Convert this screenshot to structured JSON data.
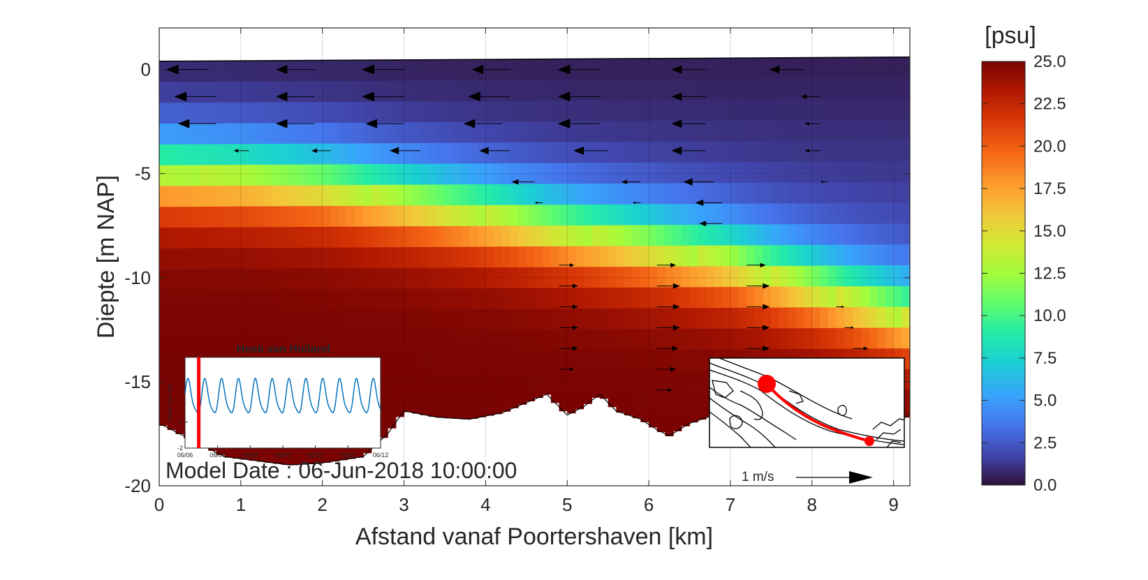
{
  "chart_data": {
    "type": "heatmap",
    "title": "",
    "xlabel": "Afstand vanaf Poortershaven [km]",
    "ylabel": "Diepte [m NAP]",
    "xlim": [
      0,
      9.2
    ],
    "ylim": [
      -20,
      2
    ],
    "x_ticks": [
      "0",
      "1",
      "2",
      "3",
      "4",
      "5",
      "6",
      "7",
      "8",
      "9"
    ],
    "y_ticks": [
      "0",
      "-5",
      "-10",
      "-15",
      "-20"
    ],
    "grid": true,
    "colorbar": {
      "label": "[psu]",
      "range": [
        0,
        25
      ],
      "ticks": [
        "0.0",
        "2.5",
        "5.0",
        "7.5",
        "10.0",
        "12.5",
        "15.0",
        "17.5",
        "20.0",
        "22.5",
        "25.0"
      ],
      "colormap": "turbo"
    },
    "water_surface": [
      {
        "x": 0,
        "y": 0.4
      },
      {
        "x": 9.2,
        "y": 0.6
      }
    ],
    "halocline_depth": [
      {
        "x": 0,
        "y": -5.0
      },
      {
        "x": 1,
        "y": -5.2
      },
      {
        "x": 2,
        "y": -5.6
      },
      {
        "x": 3,
        "y": -6.3
      },
      {
        "x": 4,
        "y": -7.0
      },
      {
        "x": 5,
        "y": -7.8
      },
      {
        "x": 6,
        "y": -8.5
      },
      {
        "x": 7,
        "y": -9.3
      },
      {
        "x": 8,
        "y": -10.5
      },
      {
        "x": 9.2,
        "y": -12.0
      }
    ],
    "bed_depth": [
      {
        "x": 0,
        "y": -17.0
      },
      {
        "x": 0.3,
        "y": -17.6
      },
      {
        "x": 0.8,
        "y": -18.6
      },
      {
        "x": 1.2,
        "y": -18.8
      },
      {
        "x": 1.6,
        "y": -19.0
      },
      {
        "x": 2.0,
        "y": -18.9
      },
      {
        "x": 2.5,
        "y": -18.6
      },
      {
        "x": 2.8,
        "y": -17.5
      },
      {
        "x": 3.0,
        "y": -16.4
      },
      {
        "x": 3.4,
        "y": -16.7
      },
      {
        "x": 3.8,
        "y": -16.8
      },
      {
        "x": 4.2,
        "y": -16.5
      },
      {
        "x": 4.5,
        "y": -16.0
      },
      {
        "x": 4.75,
        "y": -15.6
      },
      {
        "x": 5.0,
        "y": -16.6
      },
      {
        "x": 5.2,
        "y": -16.2
      },
      {
        "x": 5.4,
        "y": -15.6
      },
      {
        "x": 5.6,
        "y": -16.4
      },
      {
        "x": 5.9,
        "y": -16.8
      },
      {
        "x": 6.1,
        "y": -17.3
      },
      {
        "x": 6.25,
        "y": -17.6
      },
      {
        "x": 6.5,
        "y": -17.0
      },
      {
        "x": 6.8,
        "y": -16.6
      },
      {
        "x": 7.1,
        "y": -16.4
      },
      {
        "x": 7.5,
        "y": -16.8
      },
      {
        "x": 8.0,
        "y": -17.0
      },
      {
        "x": 8.5,
        "y": -17.2
      },
      {
        "x": 9.0,
        "y": -17.0
      },
      {
        "x": 9.2,
        "y": -16.6
      }
    ],
    "velocity_arrows": [
      {
        "x": 0.6,
        "y": 0,
        "u": -0.55
      },
      {
        "x": 1.9,
        "y": 0,
        "u": -0.5
      },
      {
        "x": 3.0,
        "y": 0,
        "u": -0.55
      },
      {
        "x": 4.3,
        "y": 0,
        "u": -0.5
      },
      {
        "x": 5.4,
        "y": 0,
        "u": -0.55
      },
      {
        "x": 6.7,
        "y": 0,
        "u": -0.45
      },
      {
        "x": 7.9,
        "y": 0,
        "u": -0.45
      },
      {
        "x": 0.7,
        "y": -1.3,
        "u": -0.55
      },
      {
        "x": 1.9,
        "y": -1.3,
        "u": -0.5
      },
      {
        "x": 3.0,
        "y": -1.3,
        "u": -0.55
      },
      {
        "x": 4.3,
        "y": -1.3,
        "u": -0.55
      },
      {
        "x": 5.4,
        "y": -1.3,
        "u": -0.55
      },
      {
        "x": 6.7,
        "y": -1.3,
        "u": -0.45
      },
      {
        "x": 8.1,
        "y": -1.3,
        "u": -0.25
      },
      {
        "x": 0.7,
        "y": -2.6,
        "u": -0.5
      },
      {
        "x": 1.9,
        "y": -2.6,
        "u": -0.5
      },
      {
        "x": 3.0,
        "y": -2.6,
        "u": -0.5
      },
      {
        "x": 4.2,
        "y": -2.6,
        "u": -0.5
      },
      {
        "x": 5.4,
        "y": -2.6,
        "u": -0.55
      },
      {
        "x": 6.7,
        "y": -2.6,
        "u": -0.45
      },
      {
        "x": 8.1,
        "y": -2.6,
        "u": -0.2
      },
      {
        "x": 1.1,
        "y": -3.9,
        "u": -0.2
      },
      {
        "x": 2.1,
        "y": -3.9,
        "u": -0.25
      },
      {
        "x": 3.2,
        "y": -3.9,
        "u": -0.4
      },
      {
        "x": 4.3,
        "y": -3.9,
        "u": -0.4
      },
      {
        "x": 5.5,
        "y": -3.9,
        "u": -0.45
      },
      {
        "x": 6.7,
        "y": -3.9,
        "u": -0.45
      },
      {
        "x": 8.1,
        "y": -3.9,
        "u": -0.2
      },
      {
        "x": 4.6,
        "y": -5.4,
        "u": -0.3
      },
      {
        "x": 5.9,
        "y": -5.4,
        "u": -0.25
      },
      {
        "x": 6.8,
        "y": -5.4,
        "u": -0.4
      },
      {
        "x": 8.2,
        "y": -5.4,
        "u": -0.1
      },
      {
        "x": 4.7,
        "y": -6.4,
        "u": -0.1
      },
      {
        "x": 5.9,
        "y": -6.4,
        "u": -0.1
      },
      {
        "x": 6.9,
        "y": -6.4,
        "u": -0.35
      },
      {
        "x": 6.9,
        "y": -7.4,
        "u": -0.3
      },
      {
        "x": 4.9,
        "y": -9.4,
        "u": 0.2
      },
      {
        "x": 6.1,
        "y": -9.4,
        "u": 0.25
      },
      {
        "x": 7.2,
        "y": -9.4,
        "u": 0.25
      },
      {
        "x": 4.9,
        "y": -10.4,
        "u": 0.25
      },
      {
        "x": 6.1,
        "y": -10.4,
        "u": 0.3
      },
      {
        "x": 7.2,
        "y": -10.4,
        "u": 0.3
      },
      {
        "x": 4.9,
        "y": -11.4,
        "u": 0.25
      },
      {
        "x": 6.1,
        "y": -11.4,
        "u": 0.3
      },
      {
        "x": 7.2,
        "y": -11.4,
        "u": 0.3
      },
      {
        "x": 8.3,
        "y": -11.4,
        "u": 0.1
      },
      {
        "x": 4.9,
        "y": -12.4,
        "u": 0.25
      },
      {
        "x": 6.1,
        "y": -12.4,
        "u": 0.3
      },
      {
        "x": 7.2,
        "y": -12.4,
        "u": 0.3
      },
      {
        "x": 8.4,
        "y": -12.4,
        "u": 0.12
      },
      {
        "x": 4.9,
        "y": -13.4,
        "u": 0.25
      },
      {
        "x": 6.1,
        "y": -13.4,
        "u": 0.28
      },
      {
        "x": 7.2,
        "y": -13.4,
        "u": 0.3
      },
      {
        "x": 8.5,
        "y": -13.4,
        "u": 0.2
      },
      {
        "x": 4.9,
        "y": -14.4,
        "u": 0.2
      },
      {
        "x": 6.1,
        "y": -14.4,
        "u": 0.25
      },
      {
        "x": 7.2,
        "y": -14.4,
        "u": 0.25
      },
      {
        "x": 6.1,
        "y": -15.4,
        "u": 0.2
      }
    ],
    "scale_arrow": {
      "label": "1 m/s",
      "u": 1.0
    },
    "annotation": "Model Date : 06-Jun-2018 10:00:00",
    "inset_timeseries": {
      "title": "Hoek van Holland",
      "ylabel": "Water level [m]",
      "y_ticks": [
        "-1",
        "-2"
      ],
      "x_ticks": [
        "06/06",
        "06/07",
        "06/08",
        "06/09",
        "06/10",
        "06/11",
        "06/12"
      ],
      "ylim": [
        -2,
        1.5
      ],
      "series_color": "#0072bd",
      "marker_color": "#ff0000",
      "marker_at_day": 0.42,
      "tidal_period_days": 0.517,
      "high_water": 0.7,
      "low_water": -0.85
    },
    "inset_map": {
      "route_color": "#ff0000"
    }
  }
}
